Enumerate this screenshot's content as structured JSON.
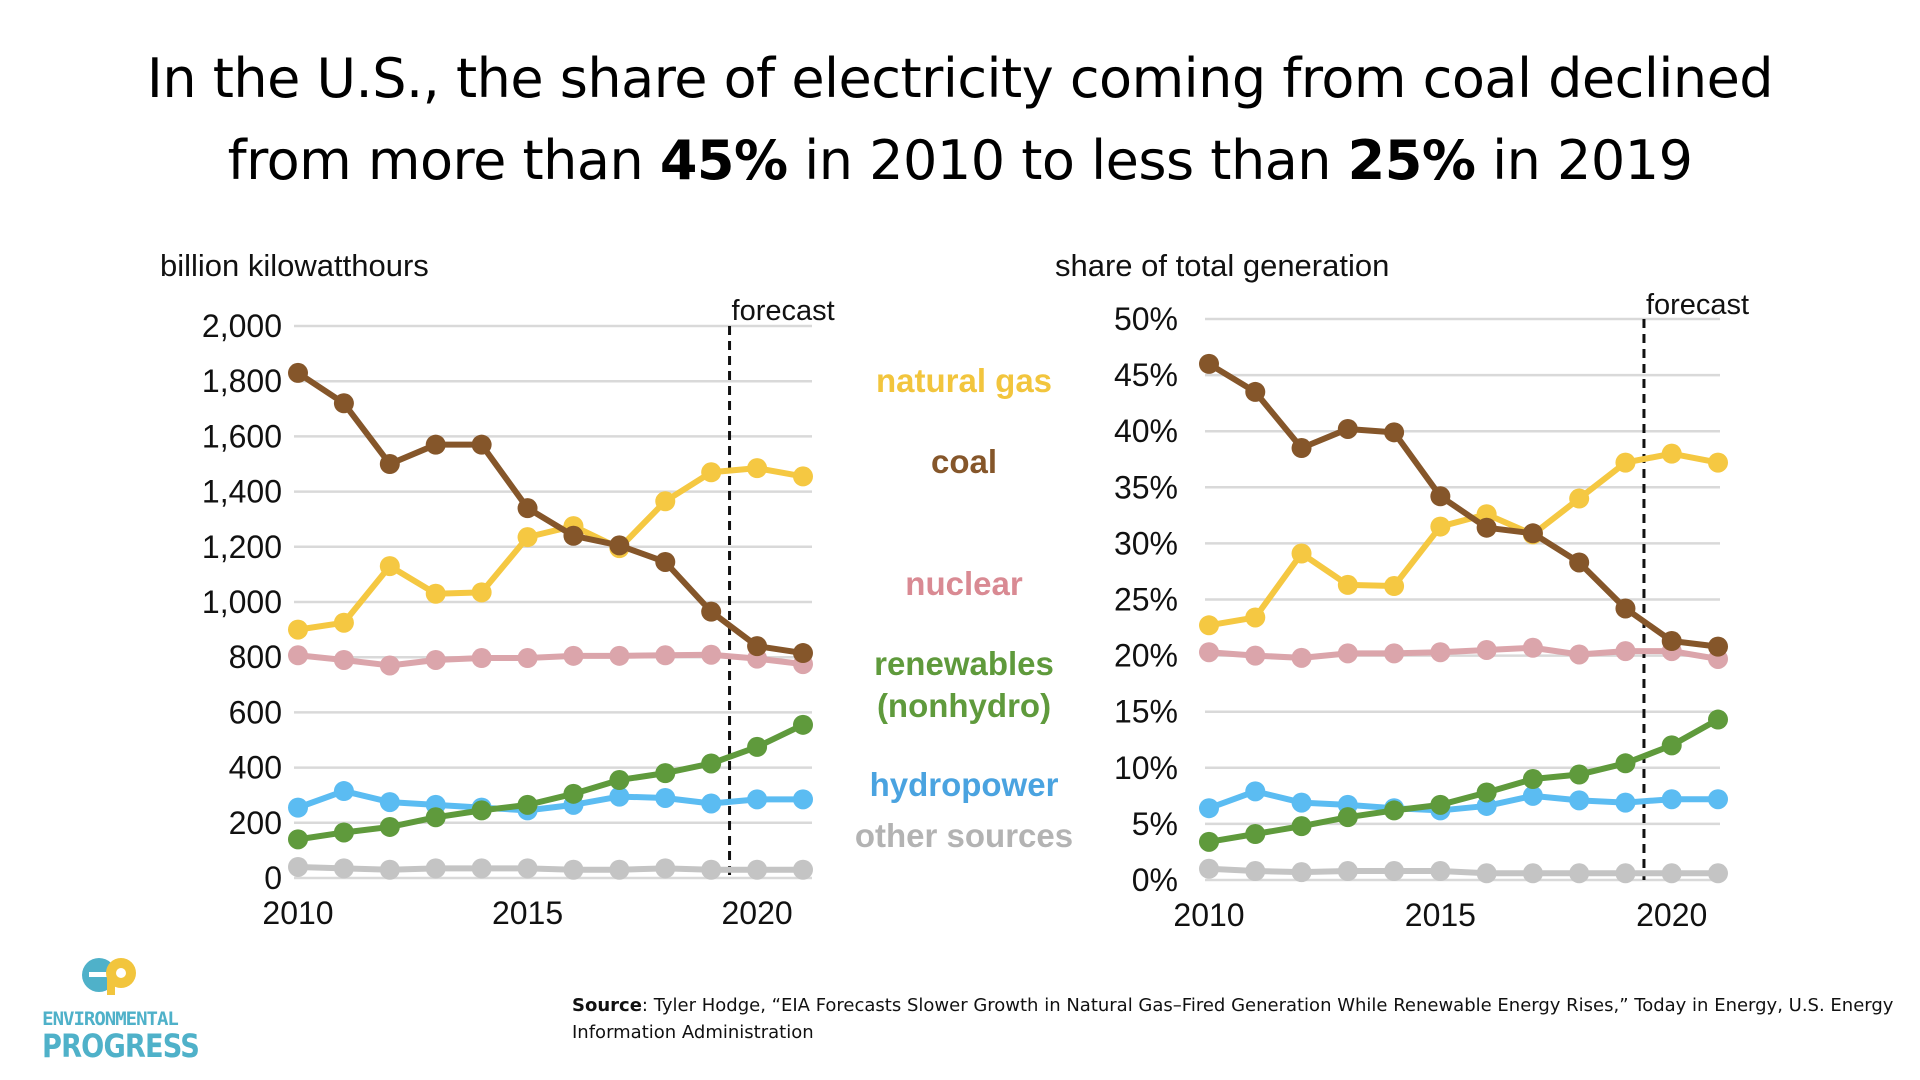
{
  "title": {
    "line1": "In the U.S., the share of electricity coming from coal declined",
    "line2_a": "from more than ",
    "line2_b": "45%",
    "line2_c": " in 2010 to less than ",
    "line2_d": "25%",
    "line2_e": " in 2019"
  },
  "legend": [
    {
      "label": "natural gas",
      "color": "#f2c53d"
    },
    {
      "label": "coal",
      "color": "#85562a"
    },
    {
      "label": "nuclear",
      "color": "#d98a93"
    },
    {
      "label": "renewables",
      "color": "#5f9a3c"
    },
    {
      "label": "(nonhydro)",
      "color": "#5f9a3c"
    },
    {
      "label": "hydropower",
      "color": "#4aa3e0"
    },
    {
      "label": "other sources",
      "color": "#b3b3b3"
    }
  ],
  "colors": {
    "coal": "#85562a",
    "gas": "#f5c842",
    "nuclear": "#dba5ab",
    "renewables": "#5f9a3c",
    "hydro": "#5bbcf2",
    "other": "#c4c4c4"
  },
  "chart_data": [
    {
      "type": "line",
      "ylabel": "billion kilowatthours",
      "annotation": "forecast",
      "forecast_start": 2019.4,
      "x": [
        2010,
        2011,
        2012,
        2013,
        2014,
        2015,
        2016,
        2017,
        2018,
        2019,
        2020,
        2021
      ],
      "xticks": [
        "2010",
        "2015",
        "2020"
      ],
      "yticks": [
        "0",
        "200",
        "400",
        "600",
        "800",
        "1,000",
        "1,200",
        "1,400",
        "1,600",
        "1,800",
        "2,000"
      ],
      "ylim": [
        0,
        2000
      ],
      "grid": true,
      "series": [
        {
          "key": "coal",
          "name": "coal",
          "values": [
            1830,
            1720,
            1500,
            1570,
            1570,
            1340,
            1240,
            1205,
            1145,
            965,
            840,
            815
          ]
        },
        {
          "key": "gas",
          "name": "natural gas",
          "values": [
            900,
            925,
            1130,
            1030,
            1035,
            1235,
            1275,
            1195,
            1365,
            1470,
            1485,
            1455
          ]
        },
        {
          "key": "nuclear",
          "name": "nuclear",
          "values": [
            807,
            790,
            770,
            790,
            797,
            797,
            805,
            805,
            807,
            809,
            795,
            775
          ]
        },
        {
          "key": "renewables",
          "name": "renewables (nonhydro)",
          "values": [
            140,
            165,
            185,
            220,
            245,
            265,
            305,
            355,
            380,
            415,
            475,
            555
          ]
        },
        {
          "key": "hydro",
          "name": "hydropower",
          "values": [
            255,
            315,
            275,
            265,
            255,
            245,
            265,
            295,
            290,
            270,
            285,
            285
          ]
        },
        {
          "key": "other",
          "name": "other sources",
          "values": [
            40,
            35,
            30,
            35,
            35,
            35,
            30,
            30,
            35,
            30,
            30,
            30
          ]
        }
      ]
    },
    {
      "type": "line",
      "ylabel": "share of total generation",
      "annotation": "forecast",
      "forecast_start": 2019.4,
      "x": [
        2010,
        2011,
        2012,
        2013,
        2014,
        2015,
        2016,
        2017,
        2018,
        2019,
        2020,
        2021
      ],
      "xticks": [
        "2010",
        "2015",
        "2020"
      ],
      "yticks": [
        "0%",
        "5%",
        "10%",
        "15%",
        "20%",
        "25%",
        "30%",
        "35%",
        "40%",
        "45%",
        "50%"
      ],
      "ylim": [
        0,
        50
      ],
      "grid": true,
      "series": [
        {
          "key": "coal",
          "name": "coal",
          "values": [
            46.0,
            43.5,
            38.5,
            40.2,
            39.9,
            34.2,
            31.4,
            30.9,
            28.3,
            24.2,
            21.3,
            20.8
          ]
        },
        {
          "key": "gas",
          "name": "natural gas",
          "values": [
            22.7,
            23.4,
            29.1,
            26.3,
            26.2,
            31.5,
            32.6,
            30.8,
            34.0,
            37.2,
            38.0,
            37.2
          ]
        },
        {
          "key": "nuclear",
          "name": "nuclear",
          "values": [
            20.3,
            20.0,
            19.8,
            20.2,
            20.2,
            20.3,
            20.5,
            20.7,
            20.1,
            20.4,
            20.4,
            19.7
          ]
        },
        {
          "key": "renewables",
          "name": "renewables (nonhydro)",
          "values": [
            3.4,
            4.1,
            4.8,
            5.6,
            6.2,
            6.7,
            7.8,
            9.0,
            9.4,
            10.4,
            12.0,
            14.3
          ]
        },
        {
          "key": "hydro",
          "name": "hydropower",
          "values": [
            6.4,
            7.9,
            6.9,
            6.7,
            6.4,
            6.2,
            6.6,
            7.5,
            7.1,
            6.9,
            7.2,
            7.2
          ]
        },
        {
          "key": "other",
          "name": "other sources",
          "values": [
            1.0,
            0.8,
            0.7,
            0.8,
            0.8,
            0.8,
            0.6,
            0.6,
            0.6,
            0.6,
            0.6,
            0.6
          ]
        }
      ]
    }
  ],
  "logo": {
    "line1": "ENVIRONMENTAL",
    "line2": "PROGRESS"
  },
  "source": {
    "label": "Source",
    "text": ": Tyler Hodge, “EIA Forecasts Slower Growth in Natural Gas–Fired Generation While Renewable Energy Rises,” Today in Energy, U.S. Energy Information Administration"
  }
}
